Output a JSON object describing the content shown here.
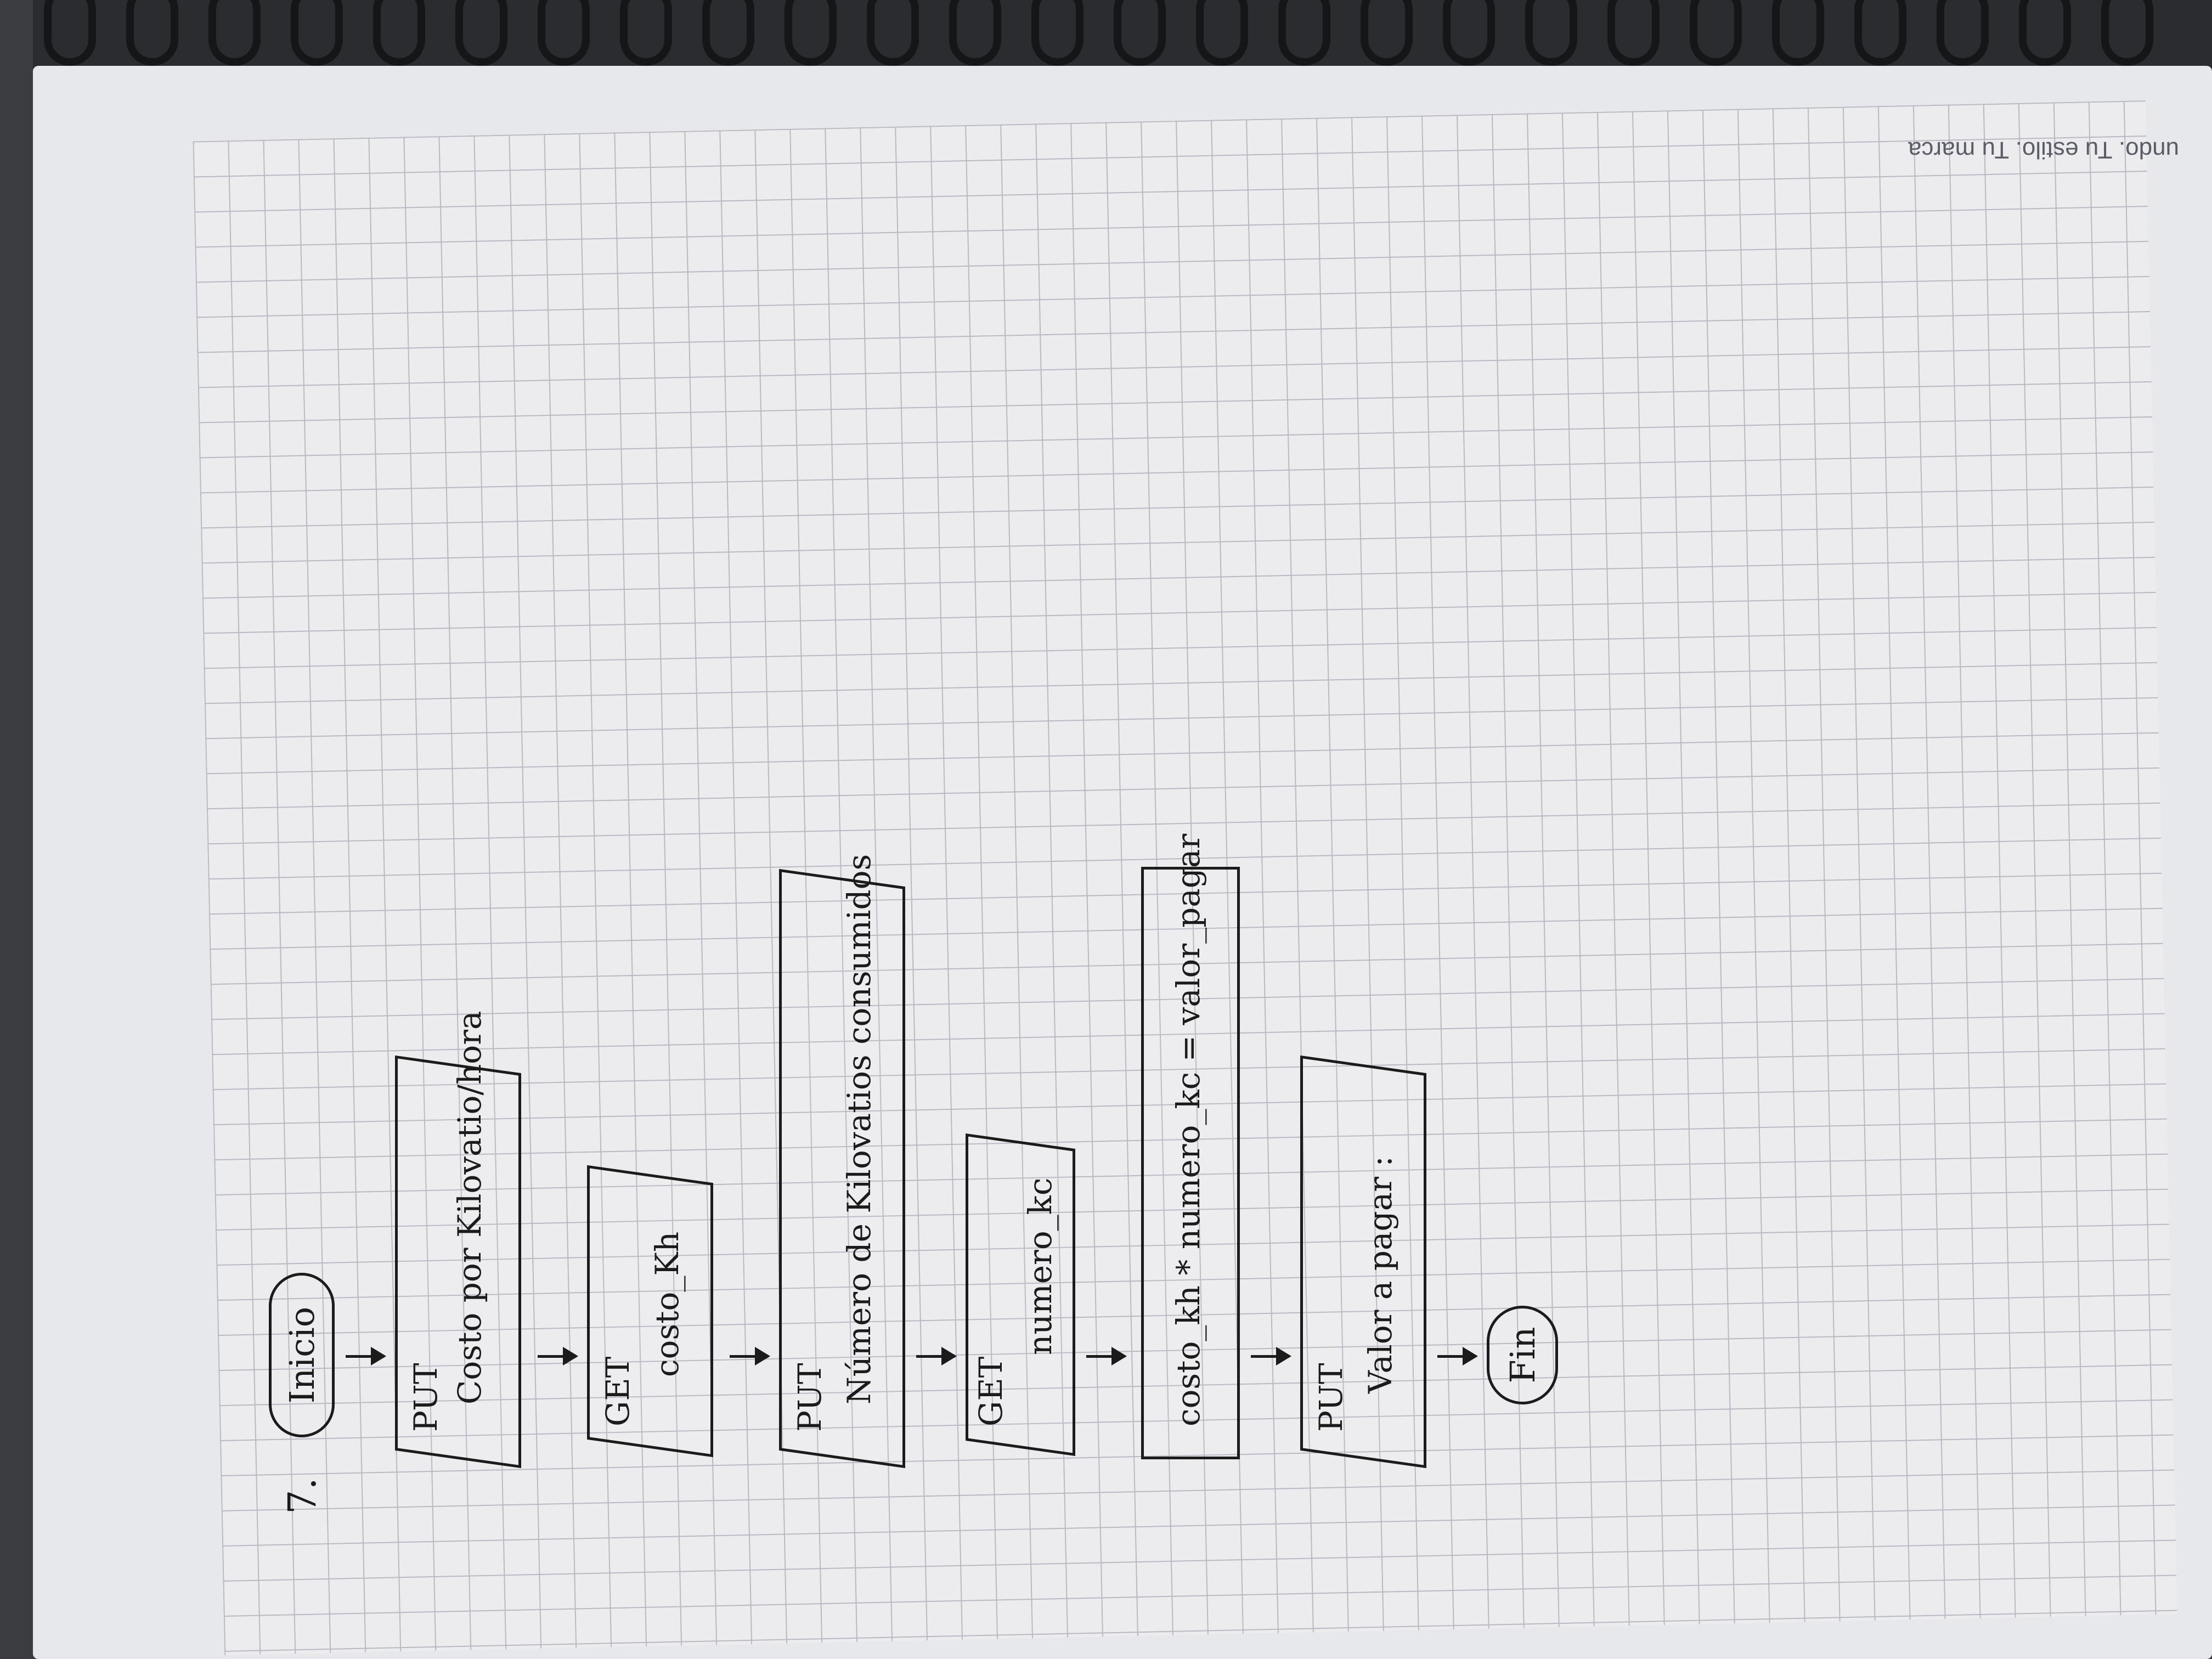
{
  "page": {
    "brand": "undo. Tu estilo. Tu marca"
  },
  "diagram": {
    "number": "7.",
    "start": "Inicio",
    "end": "Fin",
    "steps": [
      {
        "keyword": "PUT",
        "text": "Costo por Kilovatio/hora"
      },
      {
        "keyword": "GET",
        "text": "costo_Kh"
      },
      {
        "keyword": "PUT",
        "text": "Número de Kilovatios consumidos"
      },
      {
        "keyword": "GET",
        "text": "numero_kc"
      },
      {
        "keyword": "",
        "text": "costo_kh * numero_kc = valor_pagar"
      },
      {
        "keyword": "PUT",
        "text": "Valor a pagar :"
      }
    ]
  }
}
